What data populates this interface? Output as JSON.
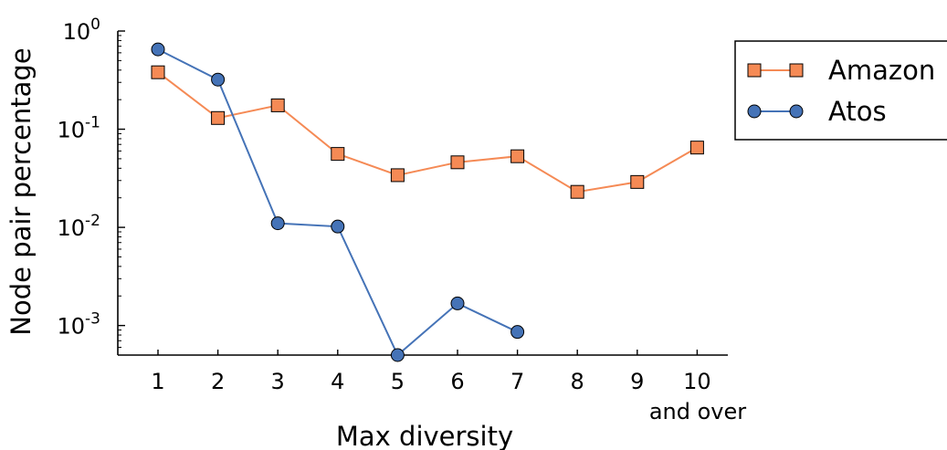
{
  "chart_data": {
    "type": "line",
    "xlabel": "Max diversity",
    "ylabel": "Node pair percentage",
    "y_scale": "log",
    "ylim": [
      0.0005,
      1
    ],
    "xlim": [
      0.5,
      10.5
    ],
    "categories": [
      "1",
      "2",
      "3",
      "4",
      "5",
      "6",
      "7",
      "8",
      "9",
      "10"
    ],
    "x_extra_label": "and over",
    "y_ticks": [
      {
        "value": 0.001,
        "base": "10",
        "exp": "-3"
      },
      {
        "value": 0.01,
        "base": "10",
        "exp": "-2"
      },
      {
        "value": 0.1,
        "base": "10",
        "exp": "-1"
      },
      {
        "value": 1,
        "base": "10",
        "exp": "0"
      }
    ],
    "legend_position": "top-right",
    "grid": false,
    "series": [
      {
        "name": "Amazon",
        "marker": "square",
        "color": "#F58A55",
        "x": [
          1,
          2,
          3,
          4,
          5,
          6,
          7,
          8,
          9,
          10
        ],
        "values": [
          0.38,
          0.13,
          0.175,
          0.056,
          0.034,
          0.046,
          0.053,
          0.023,
          0.029,
          0.065
        ]
      },
      {
        "name": "Atos",
        "marker": "circle",
        "color": "#4573B7",
        "x": [
          1,
          2,
          3,
          4,
          5,
          6,
          7
        ],
        "values": [
          0.65,
          0.32,
          0.011,
          0.0102,
          0.0005,
          0.00168,
          0.00086
        ]
      }
    ]
  }
}
